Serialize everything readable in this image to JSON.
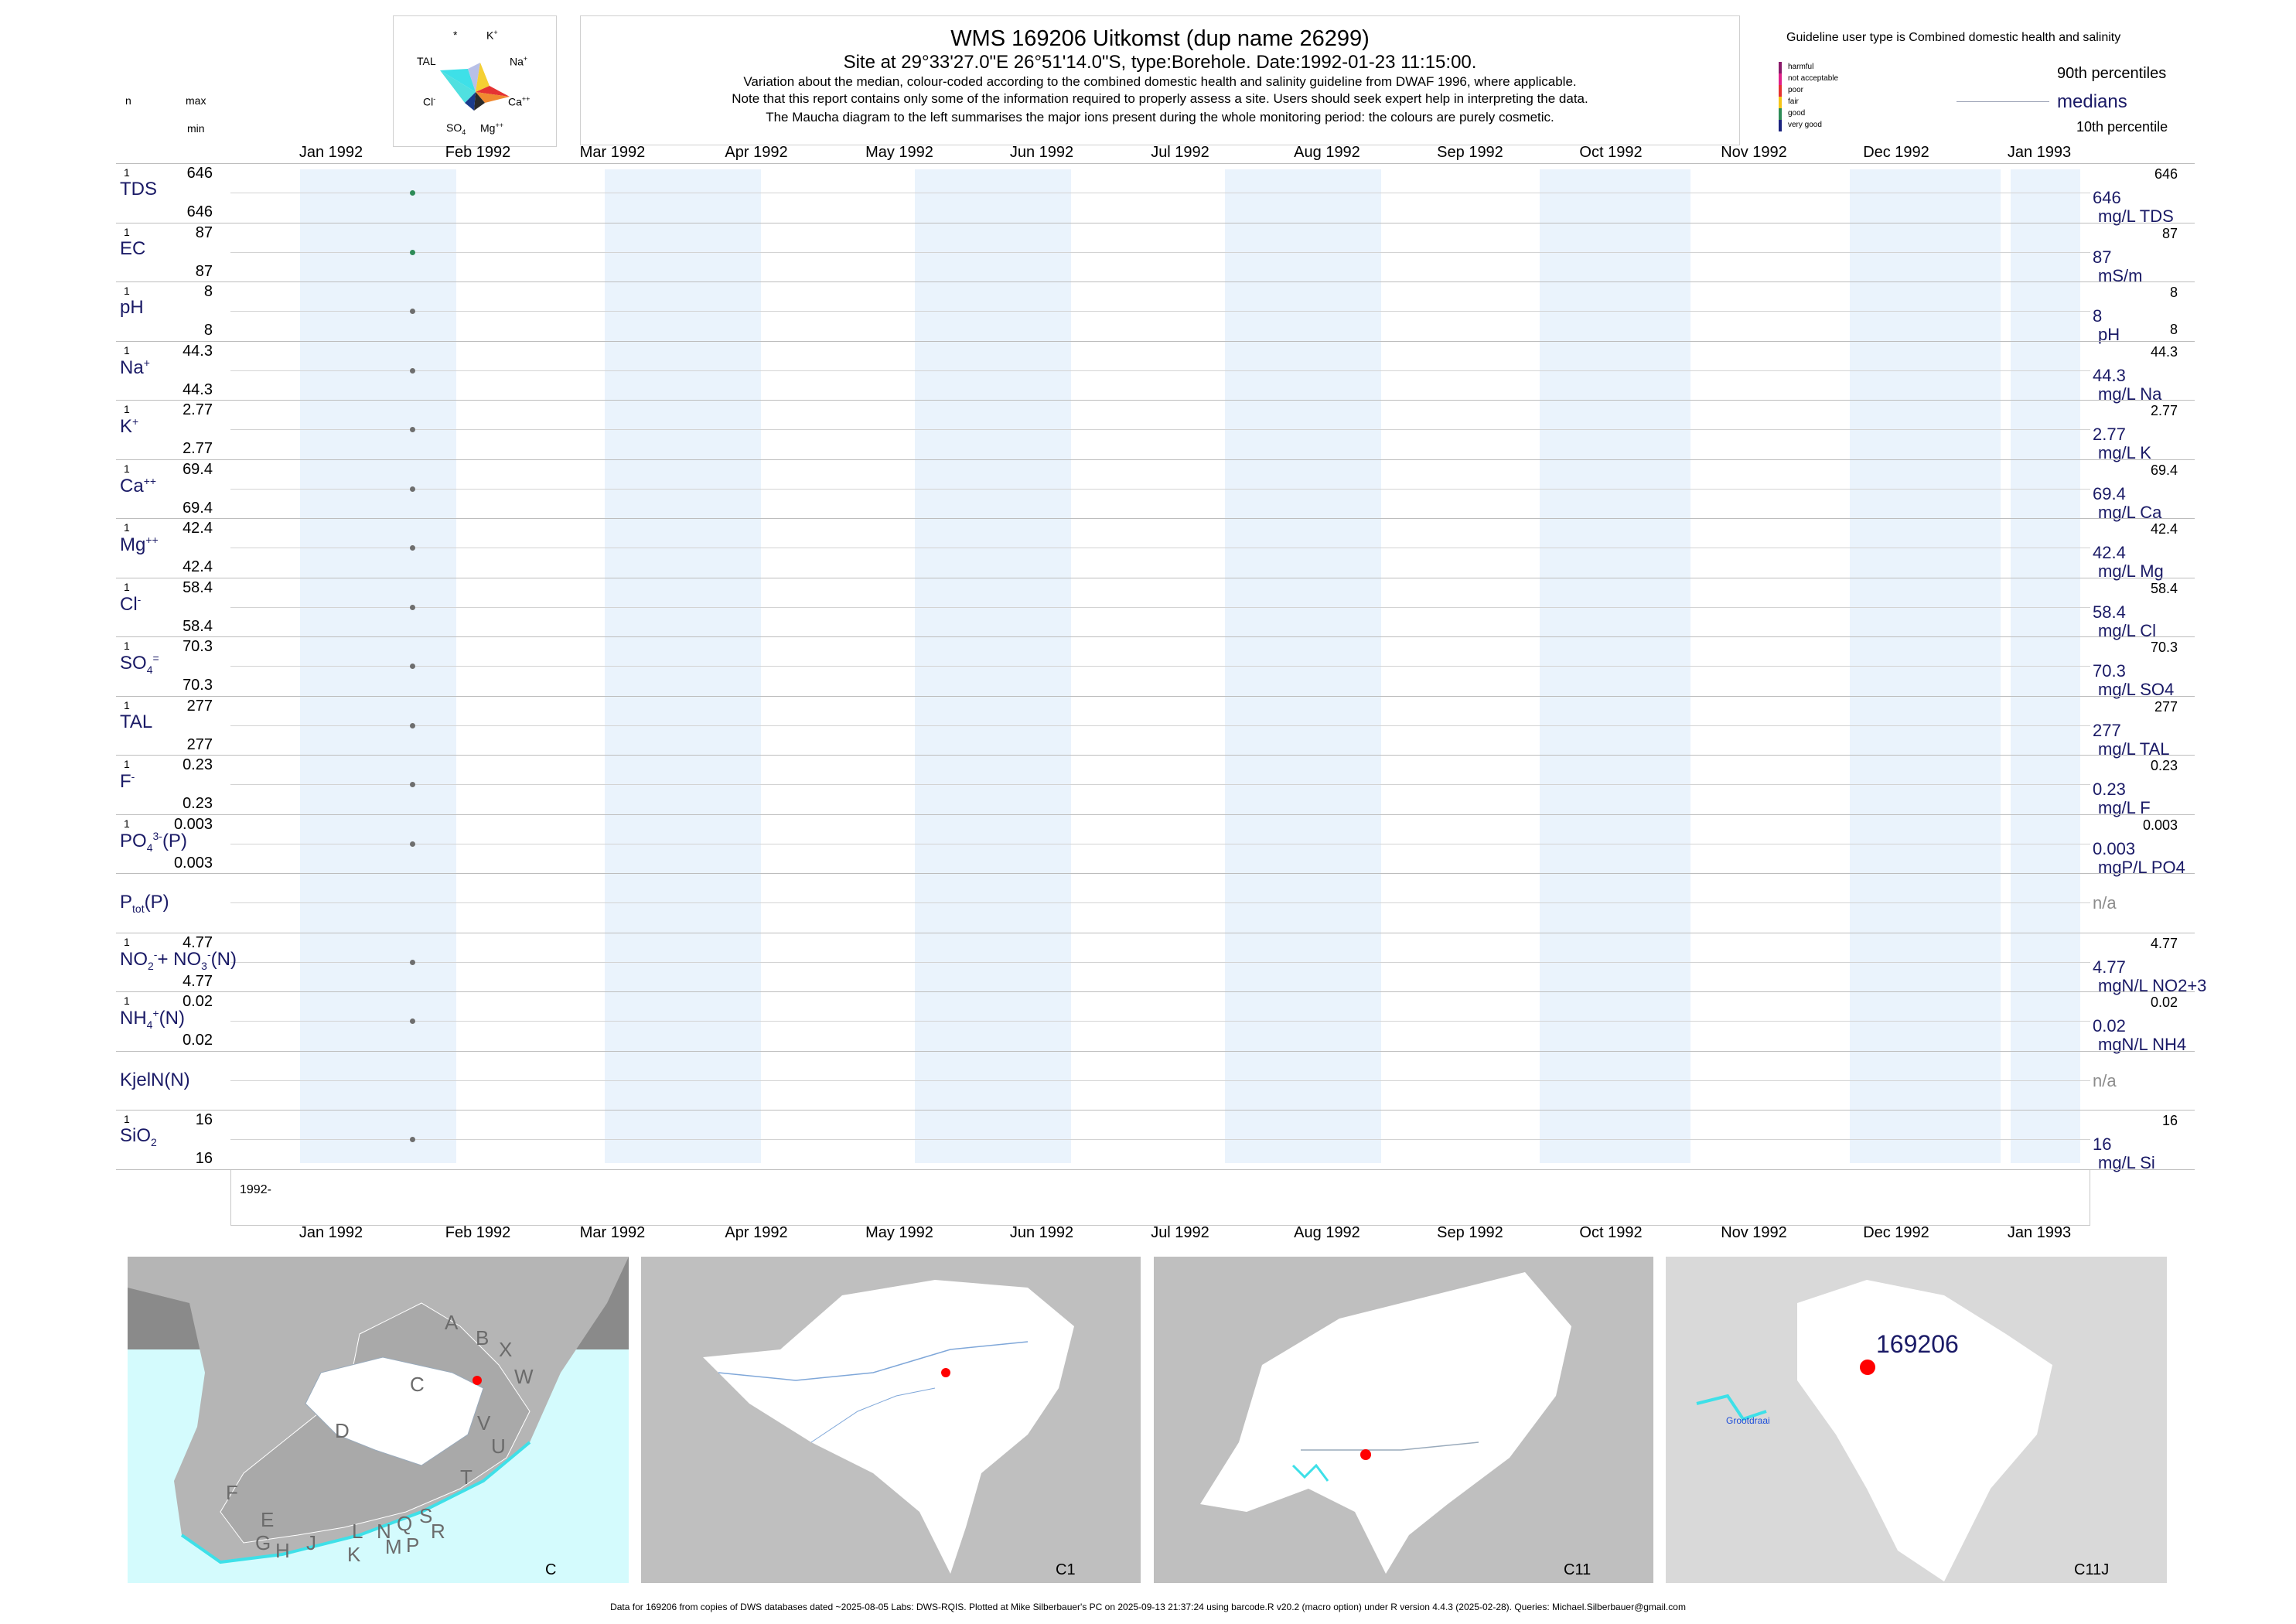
{
  "header": {
    "title": "WMS 169206  Uitkomst (dup name 26299)",
    "subtitle": "Site at 29°33'27.0\"E 26°51'14.0\"S, type:Borehole. Date:1992-01-23 11:15:00.",
    "note1": "Variation about the median,  colour-coded according to the combined domestic health and salinity guideline from DWAF 1996, where applicable.",
    "note2": "Note that this report contains only some of the information required to properly assess a site. Users should seek expert help in interpreting the data.",
    "note3": "The Maucha diagram to the left summarises the major ions present during the whole monitoring period: the colours are purely cosmetic."
  },
  "maucha": {
    "star": "*",
    "ions": {
      "k": "K",
      "tal": "TAL",
      "na": "Na",
      "cl": "Cl",
      "ca": "Ca",
      "so4": "SO",
      "mg": "Mg"
    }
  },
  "guideline": {
    "title": "Guideline user type is Combined domestic health and salinity",
    "categories": [
      {
        "label": "harmful",
        "color": "#8b1a6b"
      },
      {
        "label": "not acceptable",
        "color": "#e0218a"
      },
      {
        "label": "poor",
        "color": "#e53333"
      },
      {
        "label": "fair",
        "color": "#f5c518"
      },
      {
        "label": "good",
        "color": "#2e8b57"
      },
      {
        "label": "very good",
        "color": "#1a237e"
      }
    ],
    "p90": "90th percentiles",
    "medians": "medians",
    "p10": "10th percentile"
  },
  "table_head": {
    "n": "n",
    "max": "max",
    "min": "min"
  },
  "colors": {
    "band": "#eaf3fc",
    "dot_good": "#2e8b57",
    "dot_neutral": "#6e6e6e",
    "label": "#1a1a66"
  },
  "chart_data": {
    "type": "scatter",
    "x_axis": {
      "tick_labels": [
        "Jan 1992",
        "Feb 1992",
        "Mar 1992",
        "Apr 1992",
        "May 1992",
        "Jun 1992",
        "Jul 1992",
        "Aug 1992",
        "Sep 1992",
        "Oct 1992",
        "Nov 1992",
        "Dec 1992",
        "Jan 1993"
      ],
      "range": [
        "1992-01-01",
        "1993-01-01"
      ],
      "year_label": "1992-"
    },
    "sample_date": "1992-01-23",
    "parameters": [
      {
        "key": "TDS",
        "n": "1",
        "max": "646",
        "min": "646",
        "median": "646",
        "unit": "mg/L TDS",
        "r_max": "646",
        "r_min": "",
        "dot": "good"
      },
      {
        "key": "EC",
        "n": "1",
        "max": "87",
        "min": "87",
        "median": "87",
        "unit": "mS/m",
        "r_max": "87",
        "r_min": "",
        "dot": "good"
      },
      {
        "key": "pH",
        "n": "1",
        "max": "8",
        "min": "8",
        "median": "8",
        "unit": "pH",
        "r_max": "8",
        "r_min": "8",
        "dot": "neutral"
      },
      {
        "key": "Na",
        "n": "1",
        "max": "44.3",
        "min": "44.3",
        "median": "44.3",
        "unit": "mg/L Na",
        "r_max": "44.3",
        "r_min": "",
        "dot": "neutral"
      },
      {
        "key": "K",
        "n": "1",
        "max": "2.77",
        "min": "2.77",
        "median": "2.77",
        "unit": "mg/L K",
        "r_max": "2.77",
        "r_min": "",
        "dot": "neutral"
      },
      {
        "key": "Ca",
        "n": "1",
        "max": "69.4",
        "min": "69.4",
        "median": "69.4",
        "unit": "mg/L Ca",
        "r_max": "69.4",
        "r_min": "",
        "dot": "neutral"
      },
      {
        "key": "Mg",
        "n": "1",
        "max": "42.4",
        "min": "42.4",
        "median": "42.4",
        "unit": "mg/L Mg",
        "r_max": "42.4",
        "r_min": "",
        "dot": "neutral"
      },
      {
        "key": "Cl",
        "n": "1",
        "max": "58.4",
        "min": "58.4",
        "median": "58.4",
        "unit": "mg/L Cl",
        "r_max": "58.4",
        "r_min": "",
        "dot": "neutral"
      },
      {
        "key": "SO4",
        "n": "1",
        "max": "70.3",
        "min": "70.3",
        "median": "70.3",
        "unit": "mg/L SO4",
        "r_max": "70.3",
        "r_min": "",
        "dot": "neutral"
      },
      {
        "key": "TAL",
        "n": "1",
        "max": "277",
        "min": "277",
        "median": "277",
        "unit": "mg/L TAL",
        "r_max": "277",
        "r_min": "",
        "dot": "neutral"
      },
      {
        "key": "F",
        "n": "1",
        "max": "0.23",
        "min": "0.23",
        "median": "0.23",
        "unit": "mg/L F",
        "r_max": "0.23",
        "r_min": "",
        "dot": "neutral"
      },
      {
        "key": "PO4",
        "n": "1",
        "max": "0.003",
        "min": "0.003",
        "median": "0.003",
        "unit": "mgP/L PO4",
        "r_max": "0.003",
        "r_min": "",
        "dot": "neutral"
      },
      {
        "key": "Ptot",
        "n": "",
        "max": "",
        "min": "",
        "median": "n/a",
        "unit": "",
        "r_max": "",
        "r_min": "",
        "dot": "none"
      },
      {
        "key": "NO23",
        "n": "1",
        "max": "4.77",
        "min": "4.77",
        "median": "4.77",
        "unit": "mgN/L NO2+3",
        "r_max": "4.77",
        "r_min": "",
        "dot": "neutral"
      },
      {
        "key": "NH4",
        "n": "1",
        "max": "0.02",
        "min": "0.02",
        "median": "0.02",
        "unit": "mgN/L NH4",
        "r_max": "0.02",
        "r_min": "",
        "dot": "neutral"
      },
      {
        "key": "KjelN",
        "n": "",
        "max": "",
        "min": "",
        "median": "n/a",
        "unit": "",
        "r_max": "",
        "r_min": "",
        "dot": "none"
      },
      {
        "key": "SiO2",
        "n": "1",
        "max": "16",
        "min": "16",
        "median": "16",
        "unit": "mg/L Si",
        "r_max": "16",
        "r_min": "",
        "dot": "neutral"
      }
    ]
  },
  "maps": {
    "panel1": {
      "label": "C",
      "regions": [
        "A",
        "B",
        "X",
        "W",
        "C",
        "D",
        "V",
        "U",
        "T",
        "F",
        "E",
        "G",
        "H",
        "J",
        "K",
        "L",
        "N",
        "M",
        "Q",
        "P",
        "S",
        "R"
      ]
    },
    "panel2": {
      "label": "C1"
    },
    "panel3": {
      "label": "C11"
    },
    "panel4": {
      "label": "C11J",
      "site": "169206",
      "dam": "Grootdraai"
    }
  },
  "footer": "Data for 169206 from copies of DWS databases dated ~2025-08-05 Labs: DWS-RQIS. Plotted at Mike Silberbauer's PC on 2025-09-13 21:37:24 using barcode.R v20.2 (macro option) under R version 4.4.3 (2025-02-28). Queries: Michael.Silberbauer@gmail.com"
}
